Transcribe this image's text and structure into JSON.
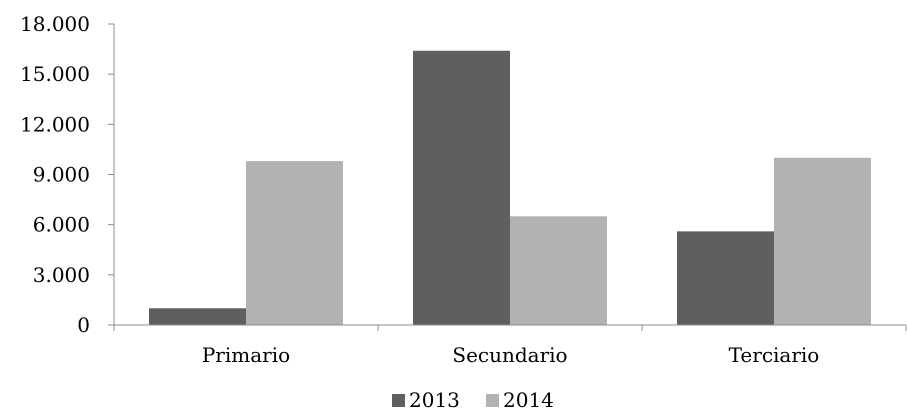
{
  "chart_data": {
    "type": "bar",
    "categories": [
      "Primario",
      "Secundario",
      "Terciario"
    ],
    "series": [
      {
        "name": "2013",
        "values": [
          1000,
          16400,
          5600
        ],
        "color": "#5f5f5f"
      },
      {
        "name": "2014",
        "values": [
          9800,
          6500,
          10000
        ],
        "color": "#b2b2b2"
      }
    ],
    "yticks": [
      "0",
      "3.000",
      "6.000",
      "9.000",
      "12.000",
      "15.000",
      "18.000"
    ],
    "ytick_values": [
      0,
      3000,
      6000,
      9000,
      12000,
      15000,
      18000
    ],
    "ylim": [
      0,
      18000
    ],
    "title": "",
    "xlabel": "",
    "ylabel": "",
    "grid": false,
    "legend_position": "bottom"
  }
}
